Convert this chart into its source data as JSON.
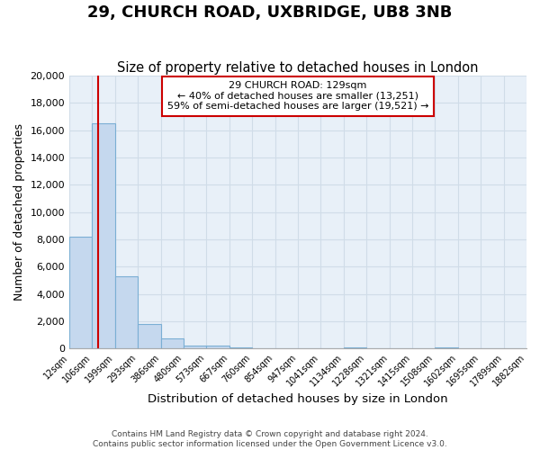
{
  "title": "29, CHURCH ROAD, UXBRIDGE, UB8 3NB",
  "subtitle": "Size of property relative to detached houses in London",
  "xlabel": "Distribution of detached houses by size in London",
  "ylabel": "Number of detached properties",
  "bar_values": [
    8200,
    16500,
    5300,
    1800,
    750,
    250,
    250,
    100,
    50,
    50,
    50,
    30,
    100,
    0,
    50,
    0,
    100,
    0,
    0,
    0
  ],
  "bar_labels": [
    "12sqm",
    "106sqm",
    "199sqm",
    "293sqm",
    "386sqm",
    "480sqm",
    "573sqm",
    "667sqm",
    "760sqm",
    "854sqm",
    "947sqm",
    "1041sqm",
    "1134sqm",
    "1228sqm",
    "1321sqm",
    "1415sqm",
    "1508sqm",
    "1602sqm",
    "1695sqm",
    "1789sqm",
    "1882sqm"
  ],
  "bar_color": "#c5d8ee",
  "bar_edge_color": "#7bafd4",
  "ylim": [
    0,
    20000
  ],
  "yticks": [
    0,
    2000,
    4000,
    6000,
    8000,
    10000,
    12000,
    14000,
    16000,
    18000,
    20000
  ],
  "red_line_x": 1.22,
  "annotation_title": "29 CHURCH ROAD: 129sqm",
  "annotation_line1": "← 40% of detached houses are smaller (13,251)",
  "annotation_line2": "59% of semi-detached houses are larger (19,521) →",
  "annotation_box_color": "#ffffff",
  "annotation_border_color": "#cc0000",
  "red_line_color": "#cc0000",
  "background_color": "#ffffff",
  "grid_color": "#d0dce8",
  "footer_line1": "Contains HM Land Registry data © Crown copyright and database right 2024.",
  "footer_line2": "Contains public sector information licensed under the Open Government Licence v3.0.",
  "title_fontsize": 13,
  "subtitle_fontsize": 10.5,
  "xlabel_fontsize": 9.5,
  "ylabel_fontsize": 9
}
